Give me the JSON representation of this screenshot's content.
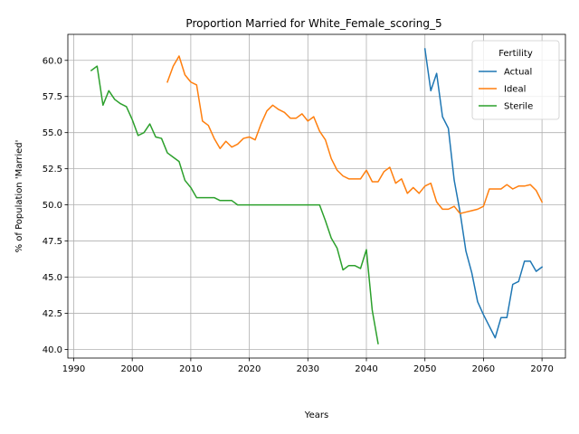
{
  "chart_data": {
    "type": "line",
    "title": "Proportion Married for White_Female_scoring_5",
    "xlabel": "Years",
    "ylabel": "% of Population 'Married'",
    "xlim": [
      1989,
      2074
    ],
    "ylim": [
      39.4,
      61.8
    ],
    "x_ticks": [
      1990,
      2000,
      2010,
      2020,
      2030,
      2040,
      2050,
      2060,
      2070
    ],
    "x_tick_labels": [
      "1990",
      "2000",
      "2010",
      "2020",
      "2030",
      "2040",
      "2050",
      "2060",
      "2070"
    ],
    "y_ticks": [
      40.0,
      42.5,
      45.0,
      47.5,
      50.0,
      52.5,
      55.0,
      57.5,
      60.0
    ],
    "y_tick_labels": [
      "40.0",
      "42.5",
      "45.0",
      "47.5",
      "50.0",
      "52.5",
      "55.0",
      "57.5",
      "60.0"
    ],
    "grid": true,
    "legend": {
      "title": "Fertility",
      "placement": "top-right"
    },
    "series": [
      {
        "name": "Actual",
        "color": "#1f77b4",
        "x": [
          2050,
          2051,
          2052,
          2053,
          2054,
          2055,
          2056,
          2057,
          2058,
          2059,
          2060,
          2061,
          2062,
          2063,
          2064,
          2065,
          2066,
          2067,
          2068,
          2069,
          2070
        ],
        "y": [
          60.8,
          57.9,
          59.1,
          56.1,
          55.3,
          51.7,
          49.5,
          46.8,
          45.3,
          43.3,
          42.4,
          41.6,
          40.8,
          42.2,
          42.2,
          44.5,
          44.7,
          46.1,
          46.1,
          45.4,
          45.7
        ]
      },
      {
        "name": "Ideal",
        "color": "#ff7f0e",
        "x": [
          2006,
          2007,
          2008,
          2009,
          2010,
          2011,
          2012,
          2013,
          2014,
          2015,
          2016,
          2017,
          2018,
          2019,
          2020,
          2021,
          2022,
          2023,
          2024,
          2025,
          2026,
          2027,
          2028,
          2029,
          2030,
          2031,
          2032,
          2033,
          2034,
          2035,
          2036,
          2037,
          2038,
          2039,
          2040,
          2041,
          2042,
          2043,
          2044,
          2045,
          2046,
          2047,
          2048,
          2049,
          2050,
          2051,
          2052,
          2053,
          2054,
          2055,
          2056,
          2057,
          2058,
          2059,
          2060,
          2061,
          2062,
          2063,
          2064,
          2065,
          2066,
          2067,
          2068,
          2069,
          2070
        ],
        "y": [
          58.5,
          59.6,
          60.3,
          59.0,
          58.5,
          58.3,
          55.8,
          55.5,
          54.6,
          53.9,
          54.4,
          54.0,
          54.2,
          54.6,
          54.7,
          54.5,
          55.6,
          56.5,
          56.9,
          56.6,
          56.4,
          56.0,
          56.0,
          56.3,
          55.8,
          56.1,
          55.1,
          54.5,
          53.2,
          52.4,
          52.0,
          51.8,
          51.8,
          51.8,
          52.4,
          51.6,
          51.6,
          52.3,
          52.6,
          51.5,
          51.8,
          50.8,
          51.2,
          50.8,
          51.3,
          51.5,
          50.2,
          49.7,
          49.7,
          49.9,
          49.4,
          49.5,
          49.6,
          49.7,
          49.9,
          51.1,
          51.1,
          51.1,
          51.4,
          51.1,
          51.3,
          51.3,
          51.4,
          51.0,
          50.2
        ]
      },
      {
        "name": "Sterile",
        "color": "#2ca02c",
        "x": [
          1993,
          1994,
          1995,
          1996,
          1997,
          1998,
          1999,
          2000,
          2001,
          2002,
          2003,
          2004,
          2005,
          2006,
          2007,
          2008,
          2009,
          2010,
          2011,
          2012,
          2013,
          2014,
          2015,
          2016,
          2017,
          2018,
          2019,
          2020,
          2021,
          2022,
          2023,
          2024,
          2025,
          2026,
          2027,
          2028,
          2029,
          2030,
          2031,
          2032,
          2033,
          2034,
          2035,
          2036,
          2037,
          2038,
          2039,
          2040,
          2041,
          2042
        ],
        "y": [
          59.3,
          59.6,
          56.9,
          57.9,
          57.3,
          57.0,
          56.8,
          55.9,
          54.8,
          55.0,
          55.6,
          54.7,
          54.6,
          53.6,
          53.3,
          53.0,
          51.7,
          51.2,
          50.5,
          50.5,
          50.5,
          50.5,
          50.3,
          50.3,
          50.3,
          50.0,
          50.0,
          50.0,
          50.0,
          50.0,
          50.0,
          50.0,
          50.0,
          50.0,
          50.0,
          50.0,
          50.0,
          50.0,
          50.0,
          50.0,
          48.9,
          47.7,
          47.0,
          45.5,
          45.8,
          45.8,
          45.6,
          46.9,
          42.7,
          40.4
        ]
      }
    ]
  }
}
